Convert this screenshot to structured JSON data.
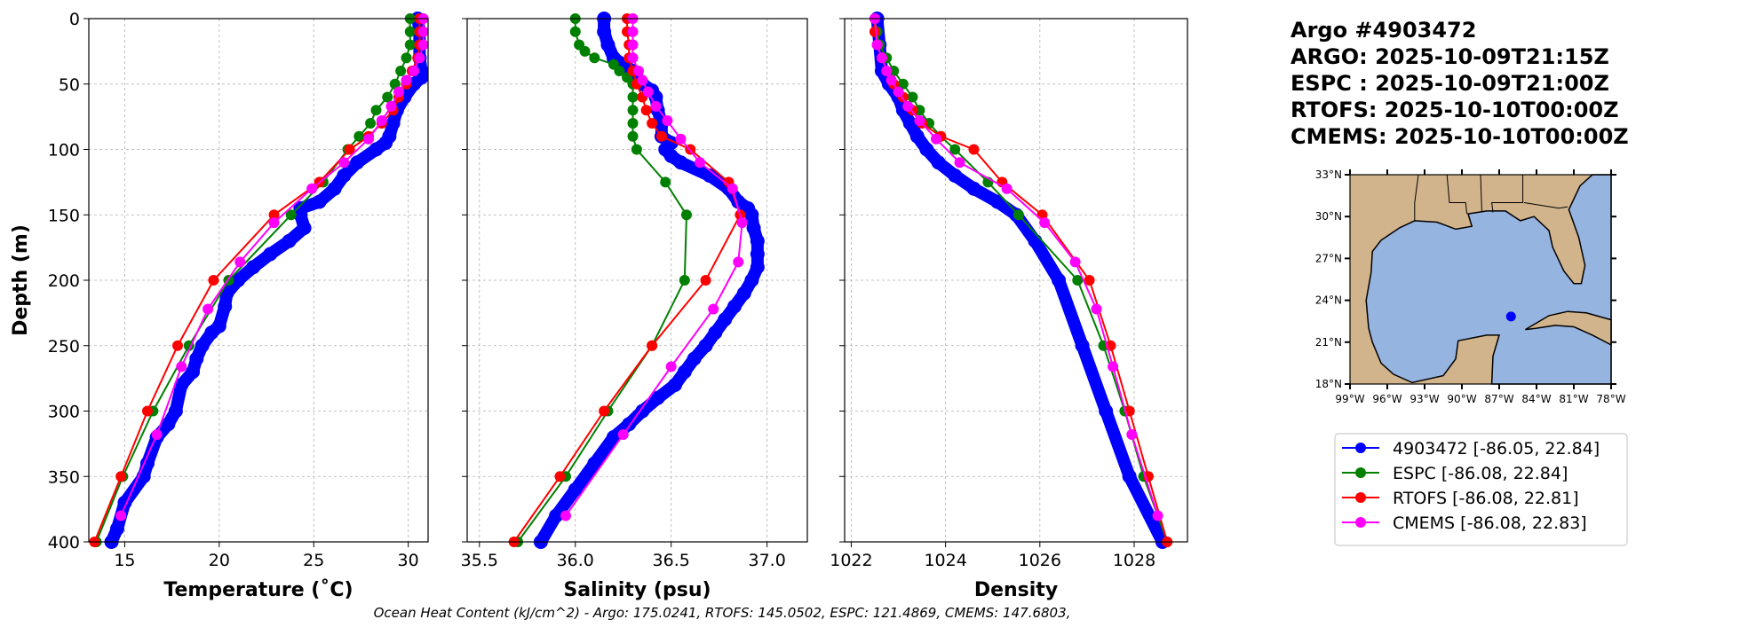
{
  "title_lines": [
    "Argo #4903472",
    "ARGO: 2025-10-09T21:15Z",
    "ESPC : 2025-10-09T21:00Z",
    "RTOFS: 2025-10-10T00:00Z",
    "CMEMS: 2025-10-10T00:00Z"
  ],
  "ohc_text": "Ocean Heat Content (kJ/cm^2) - Argo: 175.0241,  RTOFS: 145.0502,  ESPC: 121.4869,  CMEMS: 147.6803,",
  "colors": {
    "argo": "#0000ff",
    "espc": "#008000",
    "rtofs": "#ff0000",
    "cmems": "#ff00ff",
    "land": "#d2b48c",
    "water": "#96b4e0"
  },
  "legend": [
    "4903472 [-86.05, 22.84]",
    "ESPC [-86.08, 22.84]",
    "RTOFS [-86.08, 22.81]",
    "CMEMS [-86.08, 22.83]"
  ],
  "map": {
    "lon_ticks": [
      "99°W",
      "96°W",
      "93°W",
      "90°W",
      "87°W",
      "84°W",
      "81°W",
      "78°W"
    ],
    "lat_ticks": [
      "18°N",
      "21°N",
      "24°N",
      "27°N",
      "30°N",
      "33°N"
    ],
    "lon_range": [
      -99,
      -78
    ],
    "lat_range": [
      18,
      33
    ],
    "argo_position": [
      -86.05,
      22.84
    ]
  },
  "chart_data": [
    {
      "type": "line",
      "xlabel": "Temperature (˚C)",
      "ylabel": "Depth (m)",
      "xlim": [
        13.1,
        31.05
      ],
      "ylim": [
        400,
        0
      ],
      "grid": true,
      "xticks": [
        "15",
        "20",
        "25",
        "30"
      ],
      "xtick_values": [
        15,
        20,
        25,
        30
      ],
      "yticks": [
        "0",
        "50",
        "100",
        "150",
        "200",
        "250",
        "300",
        "350",
        "400"
      ],
      "ytick_values": [
        0,
        50,
        100,
        150,
        200,
        250,
        300,
        350,
        400
      ],
      "series": [
        {
          "name": "4903472",
          "key": "argo",
          "depth": [
            0,
            10,
            30,
            40,
            45,
            50,
            60,
            70,
            80,
            90,
            95,
            100,
            110,
            120,
            130,
            140,
            145,
            150,
            160,
            170,
            180,
            190,
            200,
            210,
            220,
            235,
            240,
            250,
            260,
            270,
            280,
            300,
            310,
            320,
            340,
            350,
            370,
            390,
            400
          ],
          "values": [
            30.5,
            30.6,
            30.6,
            30.7,
            30.7,
            30.3,
            29.8,
            29.4,
            29.2,
            29.0,
            28.8,
            28.3,
            27.3,
            26.6,
            26.1,
            25.3,
            24.3,
            24.3,
            24.5,
            23.7,
            22.7,
            21.8,
            21.0,
            20.4,
            20.3,
            20.0,
            19.6,
            19.1,
            18.8,
            18.6,
            18.0,
            17.7,
            17.3,
            16.7,
            16.2,
            16.0,
            15.0,
            14.6,
            14.3
          ]
        },
        {
          "name": "ESPC",
          "key": "espc",
          "depth": [
            0,
            10,
            20,
            30,
            40,
            50,
            60,
            70,
            80,
            90,
            100,
            125,
            150,
            200,
            250,
            300,
            350,
            400
          ],
          "values": [
            30.1,
            30.1,
            30.1,
            29.9,
            29.6,
            29.3,
            28.9,
            28.3,
            28.0,
            27.4,
            26.8,
            25.5,
            23.8,
            20.5,
            18.4,
            16.5,
            14.9,
            13.5
          ]
        },
        {
          "name": "RTOFS",
          "key": "rtofs",
          "depth": [
            0,
            10,
            20,
            30,
            40,
            50,
            60,
            70,
            80,
            90,
            100,
            125,
            150,
            200,
            250,
            300,
            350,
            400
          ],
          "values": [
            30.6,
            30.6,
            30.6,
            30.5,
            30.2,
            29.9,
            29.5,
            29.2,
            28.6,
            27.9,
            26.9,
            25.3,
            22.9,
            19.7,
            17.8,
            16.2,
            14.8,
            13.4
          ]
        },
        {
          "name": "CMEMS",
          "key": "cmems",
          "depth": [
            0,
            10,
            20,
            30,
            40,
            47,
            56,
            67,
            78,
            92,
            110,
            130,
            156,
            186,
            222,
            266,
            318,
            380
          ],
          "values": [
            30.8,
            30.8,
            30.8,
            30.6,
            30.3,
            29.9,
            29.5,
            29.1,
            28.6,
            27.9,
            26.6,
            24.9,
            22.9,
            21.1,
            19.4,
            18.0,
            16.7,
            14.8
          ]
        }
      ]
    },
    {
      "type": "line",
      "xlabel": "Salinity (psu)",
      "ylabel": "",
      "xlim": [
        35.436,
        37.21
      ],
      "ylim": [
        400,
        0
      ],
      "grid": true,
      "xticks": [
        "35.5",
        "36.0",
        "36.5",
        "37.0"
      ],
      "xtick_values": [
        35.5,
        36.0,
        36.5,
        37.0
      ],
      "yticks": [],
      "ytick_values": [
        0,
        50,
        100,
        150,
        200,
        250,
        300,
        350,
        400
      ],
      "series": [
        {
          "name": "4903472",
          "key": "argo",
          "depth": [
            0,
            10,
            20,
            30,
            40,
            50,
            55,
            60,
            70,
            80,
            90,
            95,
            100,
            105,
            110,
            120,
            130,
            140,
            145,
            150,
            160,
            170,
            180,
            190,
            200,
            210,
            220,
            230,
            240,
            250,
            260,
            270,
            280,
            290,
            300,
            310,
            320,
            340,
            360,
            380,
            400
          ],
          "values": [
            36.15,
            36.15,
            36.17,
            36.2,
            36.3,
            36.35,
            36.4,
            36.42,
            36.43,
            36.45,
            36.45,
            36.5,
            36.47,
            36.5,
            36.55,
            36.7,
            36.8,
            36.85,
            36.9,
            36.92,
            36.93,
            36.95,
            36.95,
            36.95,
            36.92,
            36.88,
            36.83,
            36.78,
            36.73,
            36.68,
            36.62,
            36.57,
            36.52,
            36.43,
            36.35,
            36.28,
            36.2,
            36.1,
            36.0,
            35.9,
            35.82
          ]
        },
        {
          "name": "ESPC",
          "key": "espc",
          "depth": [
            0,
            10,
            20,
            25,
            30,
            35,
            40,
            45,
            50,
            60,
            70,
            80,
            90,
            100,
            125,
            150,
            200,
            250,
            300,
            350,
            400
          ],
          "values": [
            36.0,
            36.0,
            36.02,
            36.05,
            36.1,
            36.2,
            36.23,
            36.27,
            36.3,
            36.3,
            36.3,
            36.3,
            36.3,
            36.32,
            36.47,
            36.58,
            36.57,
            36.4,
            36.17,
            35.95,
            35.7
          ]
        },
        {
          "name": "RTOFS",
          "key": "rtofs",
          "depth": [
            0,
            10,
            20,
            30,
            40,
            50,
            60,
            70,
            80,
            90,
            100,
            125,
            150,
            200,
            250,
            300,
            350,
            400
          ],
          "values": [
            36.27,
            36.27,
            36.28,
            36.28,
            36.3,
            36.32,
            36.35,
            36.37,
            36.4,
            36.45,
            36.6,
            36.8,
            36.86,
            36.68,
            36.4,
            36.15,
            35.92,
            35.68
          ]
        },
        {
          "name": "CMEMS",
          "key": "cmems",
          "depth": [
            0,
            10,
            20,
            30,
            40,
            47,
            56,
            67,
            78,
            92,
            110,
            130,
            156,
            186,
            222,
            266,
            318,
            380
          ],
          "values": [
            36.3,
            36.3,
            36.3,
            36.3,
            36.33,
            36.35,
            36.38,
            36.42,
            36.48,
            36.55,
            36.65,
            36.82,
            36.87,
            36.85,
            36.72,
            36.5,
            36.25,
            35.95
          ]
        }
      ]
    },
    {
      "type": "line",
      "xlabel": "Density",
      "ylabel": "",
      "xlim": [
        1021.86,
        1029.13
      ],
      "ylim": [
        400,
        0
      ],
      "grid": true,
      "xticks": [
        "1022",
        "1024",
        "1026",
        "1028"
      ],
      "xtick_values": [
        1022,
        1024,
        1026,
        1028
      ],
      "yticks": [],
      "ytick_values": [
        0,
        50,
        100,
        150,
        200,
        250,
        300,
        350,
        400
      ],
      "series": [
        {
          "name": "4903472",
          "key": "argo",
          "depth": [
            0,
            20,
            40,
            50,
            60,
            70,
            80,
            90,
            100,
            110,
            120,
            130,
            140,
            150,
            170,
            200,
            250,
            300,
            350,
            400
          ],
          "values": [
            1022.55,
            1022.6,
            1022.65,
            1022.8,
            1023.0,
            1023.1,
            1023.25,
            1023.4,
            1023.6,
            1023.85,
            1024.2,
            1024.6,
            1025.1,
            1025.5,
            1025.9,
            1026.4,
            1026.9,
            1027.4,
            1027.9,
            1028.6
          ]
        },
        {
          "name": "ESPC",
          "key": "espc",
          "depth": [
            0,
            10,
            20,
            30,
            40,
            50,
            60,
            70,
            80,
            90,
            100,
            125,
            150,
            200,
            250,
            300,
            350,
            400
          ],
          "values": [
            1022.5,
            1022.55,
            1022.6,
            1022.75,
            1022.9,
            1023.1,
            1023.3,
            1023.45,
            1023.65,
            1023.9,
            1024.2,
            1024.9,
            1025.55,
            1026.8,
            1027.35,
            1027.8,
            1028.2,
            1028.7
          ]
        },
        {
          "name": "RTOFS",
          "key": "rtofs",
          "depth": [
            0,
            10,
            20,
            30,
            40,
            50,
            60,
            70,
            80,
            90,
            100,
            125,
            150,
            200,
            250,
            300,
            350,
            400
          ],
          "values": [
            1022.5,
            1022.5,
            1022.55,
            1022.65,
            1022.75,
            1022.9,
            1023.1,
            1023.3,
            1023.5,
            1023.9,
            1024.6,
            1025.2,
            1026.05,
            1027.05,
            1027.5,
            1027.9,
            1028.3,
            1028.7
          ]
        },
        {
          "name": "CMEMS",
          "key": "cmems",
          "depth": [
            0,
            20,
            30,
            40,
            47,
            56,
            67,
            78,
            92,
            110,
            130,
            156,
            186,
            222,
            266,
            318,
            380
          ],
          "values": [
            1022.5,
            1022.55,
            1022.65,
            1022.75,
            1022.85,
            1023.0,
            1023.2,
            1023.45,
            1023.8,
            1024.3,
            1025.3,
            1026.1,
            1026.75,
            1027.2,
            1027.55,
            1027.95,
            1028.5
          ]
        }
      ]
    }
  ]
}
